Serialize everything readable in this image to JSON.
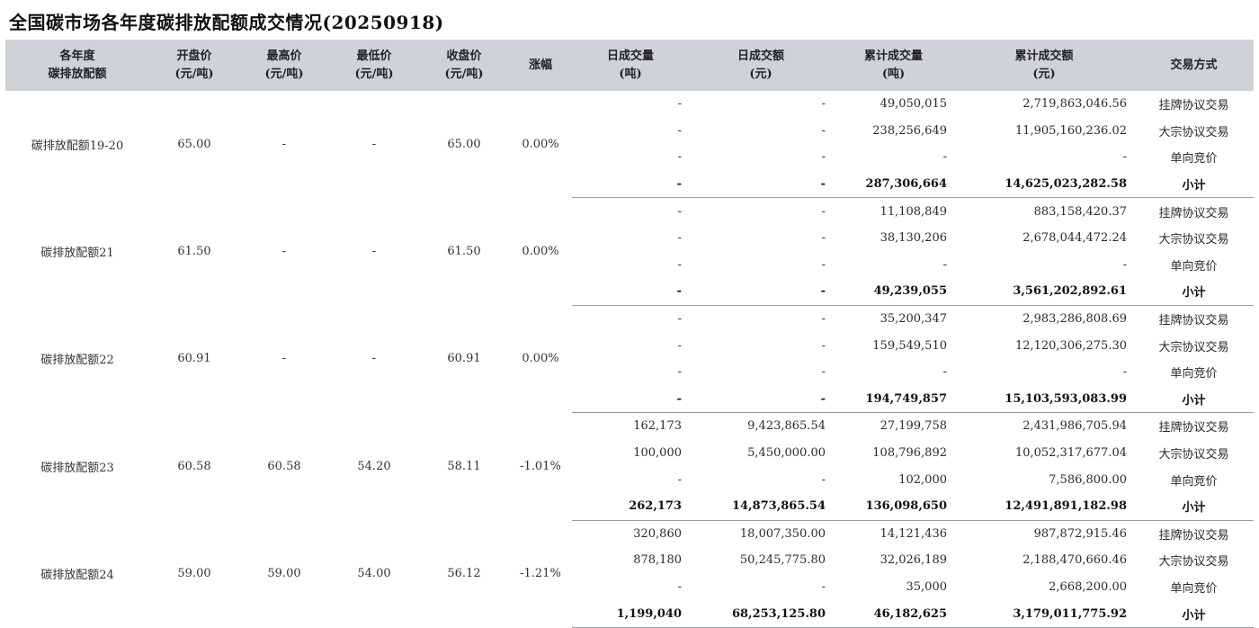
{
  "title": "全国碳市场各年度碳排放配额成交情况(20250918)",
  "headers": [
    "各年度\n碳排放配额",
    "开盘价\n(元/吨)",
    "最高价\n(元/吨)",
    "最低价\n(元/吨)",
    "收盘价\n(元/吨)",
    "涨幅",
    "日成交量\n(吨)",
    "日成交额\n(元)",
    "累计成交量\n(吨)",
    "累计成交额\n(元)",
    "交易方式"
  ],
  "groups": [
    {
      "name": "碳排放配额19-20",
      "open": "65.00",
      "high": "-",
      "low": "-",
      "close": "65.00",
      "change": "0.00%",
      "rows": [
        {
          "dvol": "-",
          "damt": "-",
          "cvol": "49,050,015",
          "camt": "2,719,863,046.56",
          "method": "挂牌协议交易"
        },
        {
          "dvol": "-",
          "damt": "-",
          "cvol": "238,256,649",
          "camt": "11,905,160,236.02",
          "method": "大宗协议交易"
        },
        {
          "dvol": "-",
          "damt": "-",
          "cvol": "-",
          "camt": "-",
          "method": "单向竞价"
        },
        {
          "dvol": "-",
          "damt": "-",
          "cvol": "287,306,664",
          "camt": "14,625,023,282.58",
          "method": "小计"
        }
      ]
    },
    {
      "name": "碳排放配额21",
      "open": "61.50",
      "high": "-",
      "low": "-",
      "close": "61.50",
      "change": "0.00%",
      "rows": [
        {
          "dvol": "-",
          "damt": "-",
          "cvol": "11,108,849",
          "camt": "883,158,420.37",
          "method": "挂牌协议交易"
        },
        {
          "dvol": "-",
          "damt": "-",
          "cvol": "38,130,206",
          "camt": "2,678,044,472.24",
          "method": "大宗协议交易"
        },
        {
          "dvol": "-",
          "damt": "-",
          "cvol": "-",
          "camt": "-",
          "method": "单向竞价"
        },
        {
          "dvol": "-",
          "damt": "-",
          "cvol": "49,239,055",
          "camt": "3,561,202,892.61",
          "method": "小计"
        }
      ]
    },
    {
      "name": "碳排放配额22",
      "open": "60.91",
      "high": "-",
      "low": "-",
      "close": "60.91",
      "change": "0.00%",
      "rows": [
        {
          "dvol": "-",
          "damt": "-",
          "cvol": "35,200,347",
          "camt": "2,983,286,808.69",
          "method": "挂牌协议交易"
        },
        {
          "dvol": "-",
          "damt": "-",
          "cvol": "159,549,510",
          "camt": "12,120,306,275.30",
          "method": "大宗协议交易"
        },
        {
          "dvol": "-",
          "damt": "-",
          "cvol": "-",
          "camt": "-",
          "method": "单向竞价"
        },
        {
          "dvol": "-",
          "damt": "-",
          "cvol": "194,749,857",
          "camt": "15,103,593,083.99",
          "method": "小计"
        }
      ]
    },
    {
      "name": "碳排放配额23",
      "open": "60.58",
      "high": "60.58",
      "low": "54.20",
      "close": "58.11",
      "change": "-1.01%",
      "rows": [
        {
          "dvol": "162,173",
          "damt": "9,423,865.54",
          "cvol": "27,199,758",
          "camt": "2,431,986,705.94",
          "method": "挂牌协议交易"
        },
        {
          "dvol": "100,000",
          "damt": "5,450,000.00",
          "cvol": "108,796,892",
          "camt": "10,052,317,677.04",
          "method": "大宗协议交易"
        },
        {
          "dvol": "-",
          "damt": "-",
          "cvol": "102,000",
          "camt": "7,586,800.00",
          "method": "单向竞价"
        },
        {
          "dvol": "262,173",
          "damt": "14,873,865.54",
          "cvol": "136,098,650",
          "camt": "12,491,891,182.98",
          "method": "小计"
        }
      ]
    },
    {
      "name": "碳排放配额24",
      "open": "59.00",
      "high": "59.00",
      "low": "54.00",
      "close": "56.12",
      "change": "-1.21%",
      "rows": [
        {
          "dvol": "320,860",
          "damt": "18,007,350.00",
          "cvol": "14,121,436",
          "camt": "987,872,915.46",
          "method": "挂牌协议交易"
        },
        {
          "dvol": "878,180",
          "damt": "50,245,775.80",
          "cvol": "32,026,189",
          "camt": "2,188,470,660.46",
          "method": "大宗协议交易"
        },
        {
          "dvol": "-",
          "damt": "-",
          "cvol": "35,000",
          "camt": "2,668,200.00",
          "method": "单向竞价"
        },
        {
          "dvol": "1,199,040",
          "damt": "68,253,125.80",
          "cvol": "46,182,625",
          "camt": "3,179,011,775.92",
          "method": "小计"
        }
      ]
    }
  ]
}
